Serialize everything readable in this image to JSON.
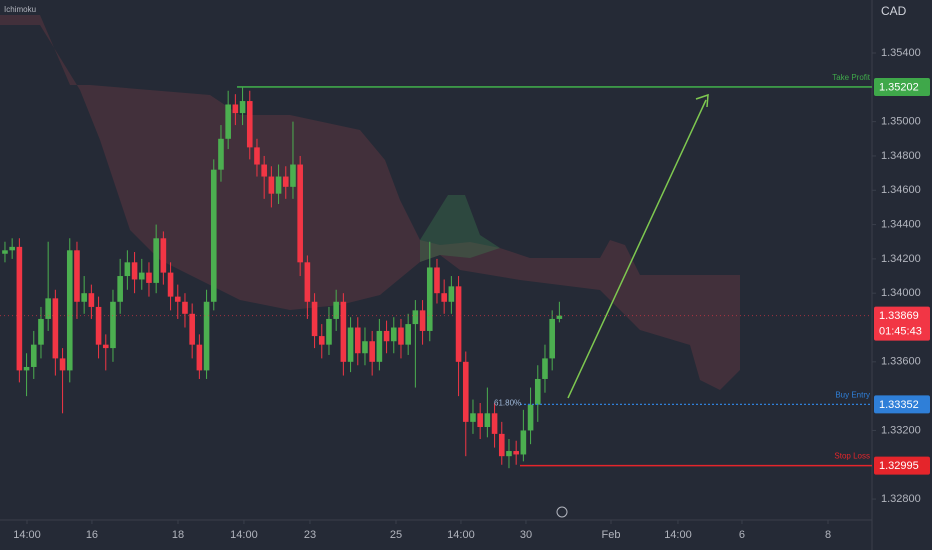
{
  "chart_data": {
    "type": "candlestick",
    "indicator": "Ichimoku",
    "currency": "CAD",
    "up_color": "#4caf50",
    "down_color": "#f23645",
    "grid": false,
    "ylim": [
      1.32678,
      1.35709
    ],
    "xlim": [
      -0.69,
      120.42
    ],
    "yticks": [
      {
        "value": 1.354,
        "label": "1.35400"
      },
      {
        "value": 1.35,
        "label": "1.35000"
      },
      {
        "value": 1.348,
        "label": "1.34800"
      },
      {
        "value": 1.346,
        "label": "1.34600"
      },
      {
        "value": 1.344,
        "label": "1.34400"
      },
      {
        "value": 1.342,
        "label": "1.34200"
      },
      {
        "value": 1.34,
        "label": "1.34000"
      },
      {
        "value": 1.336,
        "label": "1.33600"
      },
      {
        "value": 1.332,
        "label": "1.33200"
      },
      {
        "value": 1.328,
        "label": "1.32800"
      }
    ],
    "xticks": [
      {
        "value": 3.06,
        "label": "14:00"
      },
      {
        "value": 12.08,
        "label": "16"
      },
      {
        "value": 24.03,
        "label": "18"
      },
      {
        "value": 33.19,
        "label": "14:00"
      },
      {
        "value": 42.36,
        "label": "23"
      },
      {
        "value": 54.31,
        "label": "25"
      },
      {
        "value": 63.33,
        "label": "14:00"
      },
      {
        "value": 72.36,
        "label": "30"
      },
      {
        "value": 84.17,
        "label": "Feb"
      },
      {
        "value": 93.47,
        "label": "14:00"
      },
      {
        "value": 102.36,
        "label": "6"
      },
      {
        "value": 114.31,
        "label": "8"
      }
    ],
    "open": [
      1.3423,
      1.3425,
      1.3427,
      1.3355,
      1.3357,
      1.337,
      1.3385,
      1.3397,
      1.3362,
      1.3355,
      1.3425,
      1.3395,
      1.34,
      1.3392,
      1.337,
      1.3368,
      1.3395,
      1.341,
      1.3418,
      1.3408,
      1.3412,
      1.3406,
      1.3432,
      1.3412,
      1.3398,
      1.3395,
      1.3388,
      1.337,
      1.3355,
      1.3395,
      1.3472,
      1.349,
      1.351,
      1.3505,
      1.3512,
      1.3485,
      1.3475,
      1.3468,
      1.3458,
      1.3468,
      1.3462,
      1.3475,
      1.3418,
      1.3395,
      1.3375,
      1.337,
      1.3385,
      1.3395,
      1.336,
      1.338,
      1.3365,
      1.3372,
      1.336,
      1.3378,
      1.3372,
      1.338,
      1.337,
      1.3382,
      1.339,
      1.3378,
      1.3415,
      1.34,
      1.3395,
      1.3404,
      1.336,
      1.3325,
      1.333,
      1.3322,
      1.333,
      1.3318,
      1.3305,
      1.3308,
      1.3306,
      1.332,
      1.3335,
      1.335,
      1.3362,
      1.3385
    ],
    "high": [
      1.343,
      1.3432,
      1.3432,
      1.3365,
      1.3378,
      1.3392,
      1.343,
      1.3402,
      1.3368,
      1.3432,
      1.343,
      1.341,
      1.3405,
      1.3398,
      1.3376,
      1.3402,
      1.342,
      1.3425,
      1.3424,
      1.342,
      1.3418,
      1.344,
      1.3436,
      1.3418,
      1.3405,
      1.34,
      1.3394,
      1.3376,
      1.3402,
      1.3478,
      1.3498,
      1.3518,
      1.3516,
      1.352,
      1.3518,
      1.349,
      1.348,
      1.3474,
      1.3475,
      1.3474,
      1.35,
      1.348,
      1.3422,
      1.34,
      1.3382,
      1.3392,
      1.3402,
      1.34,
      1.3386,
      1.3386,
      1.338,
      1.3378,
      1.3385,
      1.3384,
      1.3386,
      1.3385,
      1.3388,
      1.3396,
      1.3396,
      1.343,
      1.342,
      1.3408,
      1.341,
      1.341,
      1.3366,
      1.3338,
      1.3336,
      1.3345,
      1.3336,
      1.3325,
      1.3315,
      1.3314,
      1.3332,
      1.3345,
      1.3358,
      1.337,
      1.339,
      1.3395
    ],
    "low": [
      1.3418,
      1.342,
      1.3348,
      1.334,
      1.335,
      1.3362,
      1.3378,
      1.3352,
      1.333,
      1.3348,
      1.3385,
      1.3388,
      1.3385,
      1.3362,
      1.3355,
      1.336,
      1.3388,
      1.3402,
      1.34,
      1.3402,
      1.3398,
      1.34,
      1.3405,
      1.339,
      1.3385,
      1.338,
      1.3362,
      1.335,
      1.335,
      1.339,
      1.3465,
      1.3484,
      1.3498,
      1.3498,
      1.3478,
      1.3468,
      1.3455,
      1.345,
      1.3452,
      1.3455,
      1.3455,
      1.341,
      1.3385,
      1.3368,
      1.3362,
      1.3364,
      1.3378,
      1.3352,
      1.3354,
      1.3358,
      1.3358,
      1.3352,
      1.3355,
      1.3365,
      1.3365,
      1.3362,
      1.3364,
      1.3345,
      1.337,
      1.3372,
      1.3394,
      1.3388,
      1.3388,
      1.334,
      1.3305,
      1.3318,
      1.3315,
      1.3316,
      1.331,
      1.33,
      1.3298,
      1.33,
      1.3302,
      1.3312,
      1.3325,
      1.3342,
      1.3355,
      1.3383
    ],
    "close": [
      1.3425,
      1.3427,
      1.3355,
      1.3357,
      1.337,
      1.3385,
      1.3397,
      1.3362,
      1.3355,
      1.3425,
      1.3395,
      1.34,
      1.3392,
      1.337,
      1.3368,
      1.3395,
      1.341,
      1.3418,
      1.3408,
      1.3412,
      1.3406,
      1.3432,
      1.3412,
      1.3398,
      1.3395,
      1.3388,
      1.337,
      1.3355,
      1.3395,
      1.3472,
      1.349,
      1.351,
      1.3505,
      1.3512,
      1.3485,
      1.3475,
      1.3468,
      1.3458,
      1.3468,
      1.3462,
      1.3475,
      1.3418,
      1.3395,
      1.3375,
      1.337,
      1.3385,
      1.3395,
      1.336,
      1.338,
      1.3365,
      1.3372,
      1.336,
      1.3378,
      1.3372,
      1.338,
      1.337,
      1.3382,
      1.339,
      1.3378,
      1.3415,
      1.34,
      1.3395,
      1.3404,
      1.336,
      1.3325,
      1.333,
      1.3322,
      1.333,
      1.3318,
      1.3305,
      1.3308,
      1.3306,
      1.332,
      1.3335,
      1.335,
      1.3362,
      1.3385,
      1.33869
    ],
    "levels": [
      {
        "name": "Take Profit",
        "value": 1.35202,
        "color": "#3fa84a"
      },
      {
        "name": "Buy Entry",
        "value": 1.33352,
        "color": "#2f7fd8",
        "fib_label": "61.80%"
      },
      {
        "name": "Stop Loss",
        "value": 1.32995,
        "color": "#e5252b"
      }
    ],
    "last_price": 1.33869,
    "countdown": "01:45:43"
  }
}
